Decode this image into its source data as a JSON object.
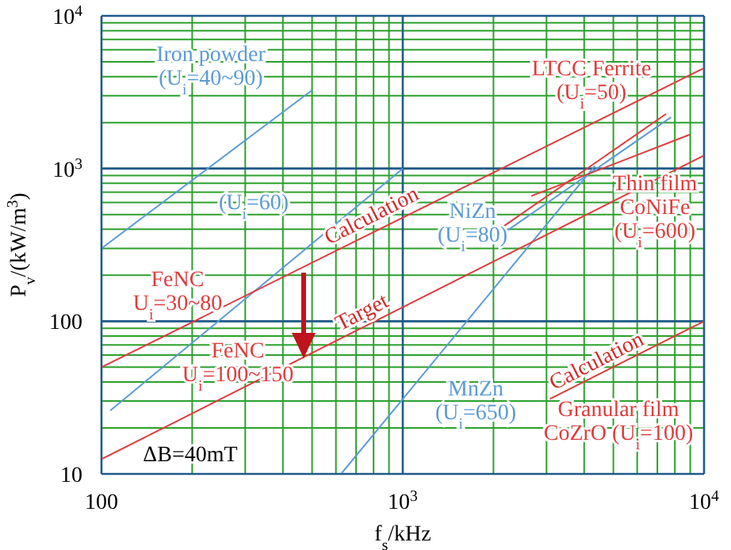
{
  "chart_data": {
    "type": "line",
    "xlabel": "f$_{s}$/kHz",
    "ylabel": "P$_{v}$/(kW/m$^{3}$)",
    "log": "xy",
    "grid": true,
    "marker": "none",
    "line_style": "solid",
    "xlim": [
      100,
      10000
    ],
    "ylim": [
      10,
      10000
    ],
    "xticks": [
      100,
      {
        "value": 200,
        "label": null
      },
      {
        "value": 300,
        "label": null
      },
      {
        "value": 400,
        "label": null
      },
      {
        "value": 500,
        "label": null
      },
      {
        "value": 600,
        "label": null
      },
      {
        "value": 700,
        "label": null
      },
      {
        "value": 800,
        "label": null
      },
      {
        "value": 900,
        "label": null
      },
      {
        "value": 1000,
        "label": "10$^{3}$"
      },
      {
        "value": 2000,
        "label": null
      },
      {
        "value": 3000,
        "label": null
      },
      {
        "value": 4000,
        "label": null
      },
      {
        "value": 5000,
        "label": null
      },
      {
        "value": 6000,
        "label": null
      },
      {
        "value": 7000,
        "label": null
      },
      {
        "value": 8000,
        "label": null
      },
      {
        "value": 9000,
        "label": null
      },
      {
        "value": 10000,
        "label": "10$^{4}$"
      }
    ],
    "yticks": [
      10,
      {
        "value": 20,
        "label": null
      },
      {
        "value": 30,
        "label": null
      },
      {
        "value": 40,
        "label": null
      },
      {
        "value": 50,
        "label": null
      },
      {
        "value": 60,
        "label": null
      },
      {
        "value": 70,
        "label": null
      },
      {
        "value": 80,
        "label": null
      },
      {
        "value": 90,
        "label": null
      },
      100,
      {
        "value": 200,
        "label": null
      },
      {
        "value": 300,
        "label": null
      },
      {
        "value": 400,
        "label": null
      },
      {
        "value": 500,
        "label": null
      },
      {
        "value": 600,
        "label": null
      },
      {
        "value": 700,
        "label": null
      },
      {
        "value": 800,
        "label": null
      },
      {
        "value": 900,
        "label": null
      },
      {
        "value": 1000,
        "label": "10$^{3}$"
      },
      {
        "value": 2000,
        "label": null
      },
      {
        "value": 3000,
        "label": null
      },
      {
        "value": 4000,
        "label": null
      },
      {
        "value": 5000,
        "label": null
      },
      {
        "value": 6000,
        "label": null
      },
      {
        "value": 7000,
        "label": null
      },
      {
        "value": 8000,
        "label": null
      },
      {
        "value": 9000,
        "label": null
      },
      {
        "value": 10000,
        "label": "10$^{4}$"
      }
    ],
    "series": [
      {
        "name": "Iron powder\n(U$_{i}$=40~90)",
        "color": "#5b9bd5",
        "x": [
          100,
          500
        ],
        "values": [
          300,
          3260
        ]
      },
      {
        "name": "(U$_{i}$=60)",
        "color": "#5b9bd5",
        "x": [
          107,
          1000
        ],
        "values": [
          26,
          1000
        ]
      },
      {
        "name": "NiZn\n(U$_{i}$=80)",
        "color": "#5b9bd5",
        "x": [
          2170,
          7770
        ],
        "values": [
          380,
          2170
        ]
      },
      {
        "name": "MnZn\n(U$_{i}$=650)",
        "color": "#5b9bd5",
        "x": [
          624,
          4340
        ],
        "values": [
          10,
          1040
        ]
      },
      {
        "name": "FeNC\nU$_{i}$=30~80",
        "color": "#e03c3c",
        "x": [
          100,
          10000
        ],
        "values": [
          50,
          4550
        ]
      },
      {
        "name": "FeNC\nU$_{i}$=100~150",
        "color": "#e03c3c",
        "x": [
          100,
          10000
        ],
        "values": [
          12.5,
          1220
        ]
      },
      {
        "name": "LTCC Ferrite\n(U$_{i}$=50)",
        "color": "#e03c3c",
        "x": [
          2090,
          7480
        ],
        "values": [
          400,
          2280
        ]
      },
      {
        "name": "Thin film\nCoNiFe\n(U$_{i}$=600)",
        "color": "#e03c3c",
        "x": [
          2670,
          8980
        ],
        "values": [
          660,
          1670
        ]
      },
      {
        "name": "Granular film\nCoZrO (U$_{i}$=100)",
        "color": "#e03c3c",
        "x": [
          3080,
          10000
        ],
        "values": [
          31,
          100
        ]
      }
    ],
    "annotations": [
      {
        "text": "Calculation",
        "x": 824,
        "y": 412
      },
      {
        "text": "Target",
        "x": 766,
        "y": 96
      },
      {
        "text": "Calculation",
        "x": 4600,
        "y": 46
      },
      "ΔB=40mT"
    ]
  }
}
